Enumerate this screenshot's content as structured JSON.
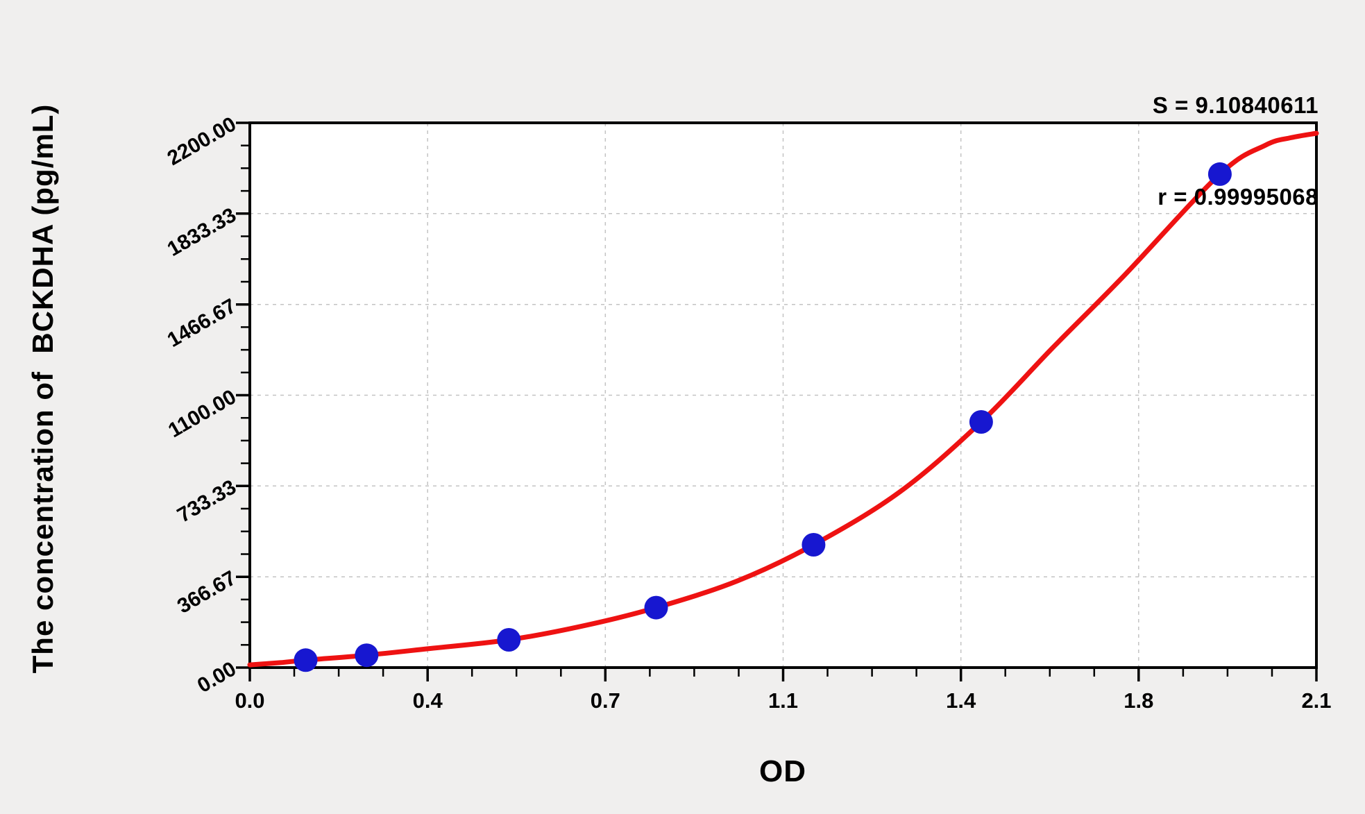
{
  "stats": {
    "s_line": "S = 9.10840611",
    "r_line": "r = 0.99995068"
  },
  "chart_data": {
    "type": "scatter",
    "title": "",
    "xlabel": "OD",
    "ylabel": "The concentration of  BCKDHA (pg/mL)",
    "xlim": [
      0,
      2.1
    ],
    "ylim": [
      0,
      2200
    ],
    "x_tick_labels": [
      "0.0",
      "0.4",
      "0.7",
      "1.1",
      "1.4",
      "1.8",
      "2.1"
    ],
    "x_tick_values": [
      0,
      0.35,
      0.7,
      1.05,
      1.4,
      1.75,
      2.1
    ],
    "y_tick_labels": [
      "0.00",
      "366.67",
      "733.33",
      "1100.00",
      "1466.67",
      "1833.33",
      "2200.00"
    ],
    "y_tick_values": [
      0,
      366.67,
      733.33,
      1100,
      1466.67,
      1833.33,
      2200
    ],
    "minor_ticks_per_division": 4,
    "grid": "dashed at major ticks",
    "legend": "none",
    "fit_statistics": {
      "S": "9.10840611",
      "r": "0.99995068"
    },
    "series": [
      {
        "name": "standard-points",
        "type": "scatter",
        "color": "#1717d0",
        "points": [
          [
            0.11,
            30
          ],
          [
            0.23,
            50
          ],
          [
            0.51,
            112
          ],
          [
            0.8,
            242
          ],
          [
            1.11,
            496
          ],
          [
            1.44,
            992
          ],
          [
            1.91,
            1993
          ]
        ]
      },
      {
        "name": "fitted-curve",
        "type": "line",
        "color": "#ee1212",
        "points": [
          [
            0.0,
            11
          ],
          [
            0.06,
            20
          ],
          [
            0.11,
            30
          ],
          [
            0.23,
            50
          ],
          [
            0.35,
            76
          ],
          [
            0.51,
            112
          ],
          [
            0.66,
            170
          ],
          [
            0.8,
            242
          ],
          [
            0.96,
            350
          ],
          [
            1.11,
            496
          ],
          [
            1.28,
            710
          ],
          [
            1.44,
            992
          ],
          [
            1.58,
            1290
          ],
          [
            1.72,
            1580
          ],
          [
            1.91,
            1993
          ],
          [
            2.0,
            2110
          ],
          [
            2.05,
            2140
          ],
          [
            2.1,
            2158
          ]
        ]
      }
    ],
    "colors": {
      "background": "#f0efee",
      "plot_background": "#ffffff",
      "axis": "#000000",
      "grid": "#c3c3c3",
      "curve": "#ee1212",
      "points": "#1717d0"
    }
  }
}
